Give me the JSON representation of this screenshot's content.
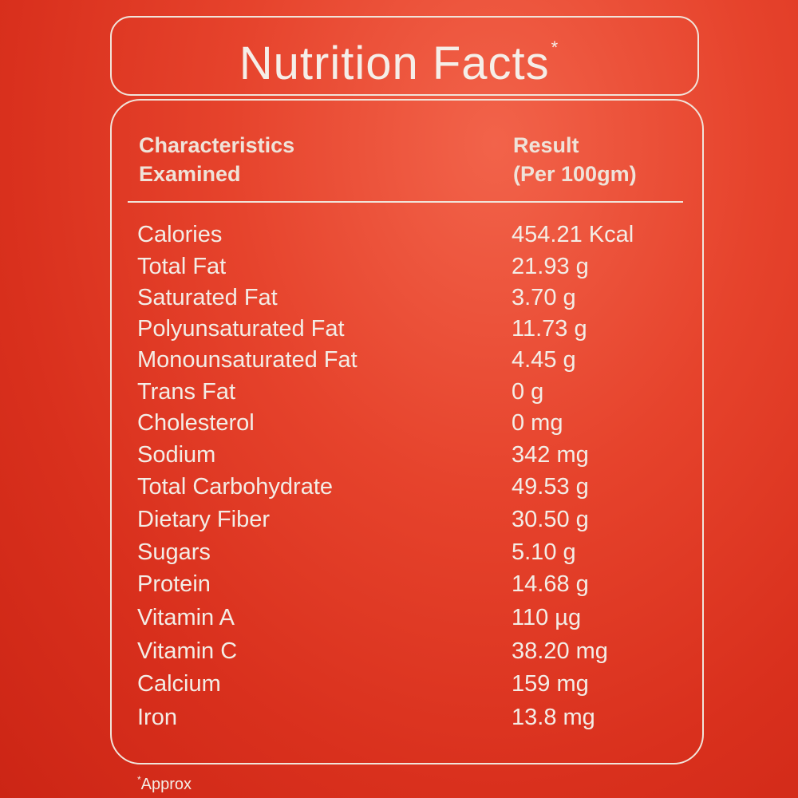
{
  "title": {
    "text": "Nutrition Facts",
    "mark": "*"
  },
  "table": {
    "header_left_1": "Characteristics",
    "header_left_2": "Examined",
    "header_right_1": "Result",
    "header_right_2": "(Per 100gm)",
    "rows": [
      {
        "name": "Calories",
        "value": "454.21 Kcal"
      },
      {
        "name": "Total Fat",
        "value": "21.93 g"
      },
      {
        "name": "Saturated Fat",
        "value": "3.70 g"
      },
      {
        "name": "Polyunsaturated Fat",
        "value": "11.73 g"
      },
      {
        "name": "Monounsaturated Fat",
        "value": "4.45 g"
      },
      {
        "name": "Trans Fat",
        "value": "0 g"
      },
      {
        "name": "Cholesterol",
        "value": "0 mg"
      },
      {
        "name": "Sodium",
        "value": "342 mg"
      },
      {
        "name": "Total Carbohydrate",
        "value": "49.53 g"
      },
      {
        "name": "Dietary Fiber",
        "value": "30.50 g"
      },
      {
        "name": "Sugars",
        "value": "5.10 g"
      },
      {
        "name": "Protein",
        "value": "14.68 g"
      },
      {
        "name": "Vitamin A",
        "value": "110 µg"
      },
      {
        "name": "Vitamin C",
        "value": "38.20 mg"
      },
      {
        "name": "Calcium",
        "value": "159 mg"
      },
      {
        "name": "Iron",
        "value": "13.8 mg"
      }
    ]
  },
  "footnote": {
    "mark": "*",
    "text": "Approx"
  },
  "colors": {
    "background": "#e6432c",
    "text": "#f3ede6",
    "border": "#f1e4da"
  }
}
